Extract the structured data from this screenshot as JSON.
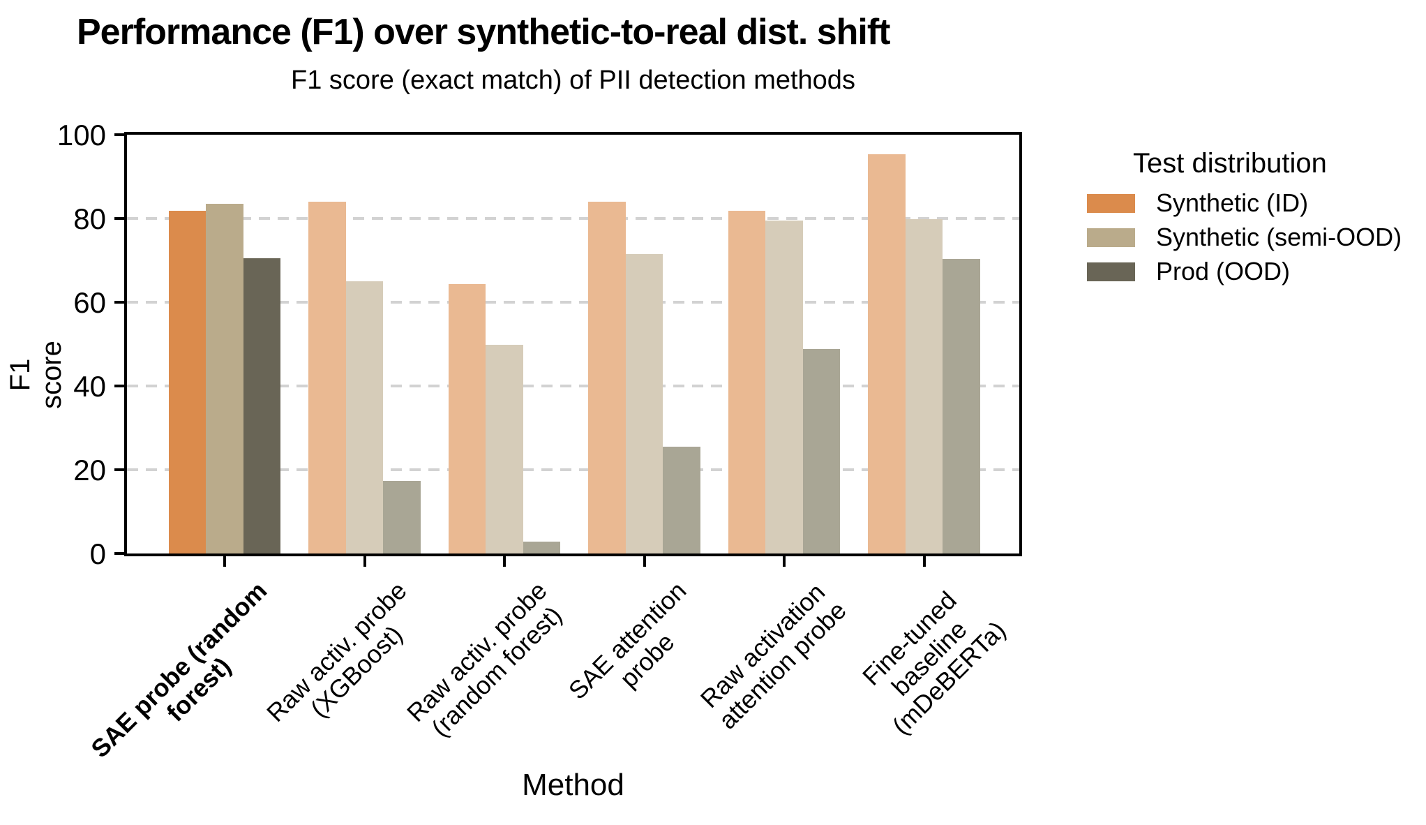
{
  "page": {
    "title": "Performance (F1) over synthetic-to-real dist. shift",
    "subtitle": "F1 score (exact match) of PII detection methods"
  },
  "chart_data": {
    "type": "bar",
    "title": "Performance (F1) over synthetic-to-real dist. shift",
    "subtitle": "F1 score (exact match) of PII detection methods",
    "xlabel": "Method",
    "ylabel": "F1 score",
    "ylim": [
      0,
      100
    ],
    "yticks": [
      0,
      20,
      40,
      60,
      80,
      100
    ],
    "grid": "horizontal dashed gridlines at 20/40/60/80",
    "legend_position": "right of plot",
    "categories": [
      "SAE probe (random\nforest)",
      "Raw activ. probe\n(XGBoost)",
      "Raw activ. probe\n(random forest)",
      "SAE attention\nprobe",
      "Raw activation\nattention probe",
      "Fine-tuned\nbaseline\n(mDeBERTa)"
    ],
    "highlighted_category_index": 0,
    "legend": {
      "title": "Test distribution",
      "entries": [
        "Synthetic (ID)",
        "Synthetic (semi-OOD)",
        "Prod (OOD)"
      ]
    },
    "series": [
      {
        "name": "Synthetic (ID)",
        "color_full": "#DB8B4C",
        "color_faded": "#EAB992",
        "values": [
          81.8,
          84.0,
          64.4,
          84.0,
          81.8,
          95.4
        ]
      },
      {
        "name": "Synthetic (semi-OOD)",
        "color_full": "#BAAB8B",
        "color_faded": "#D6CCB9",
        "values": [
          83.5,
          65.0,
          49.8,
          71.5,
          79.5,
          79.8
        ]
      },
      {
        "name": "Prod (OOD)",
        "color_full": "#696556",
        "color_faded": "#A9A695",
        "values": [
          70.5,
          17.3,
          2.8,
          25.5,
          48.8,
          70.4
        ]
      }
    ]
  },
  "colors": {
    "axis": "#000000",
    "gridline": "#d2d2d2",
    "background": "#ffffff"
  }
}
